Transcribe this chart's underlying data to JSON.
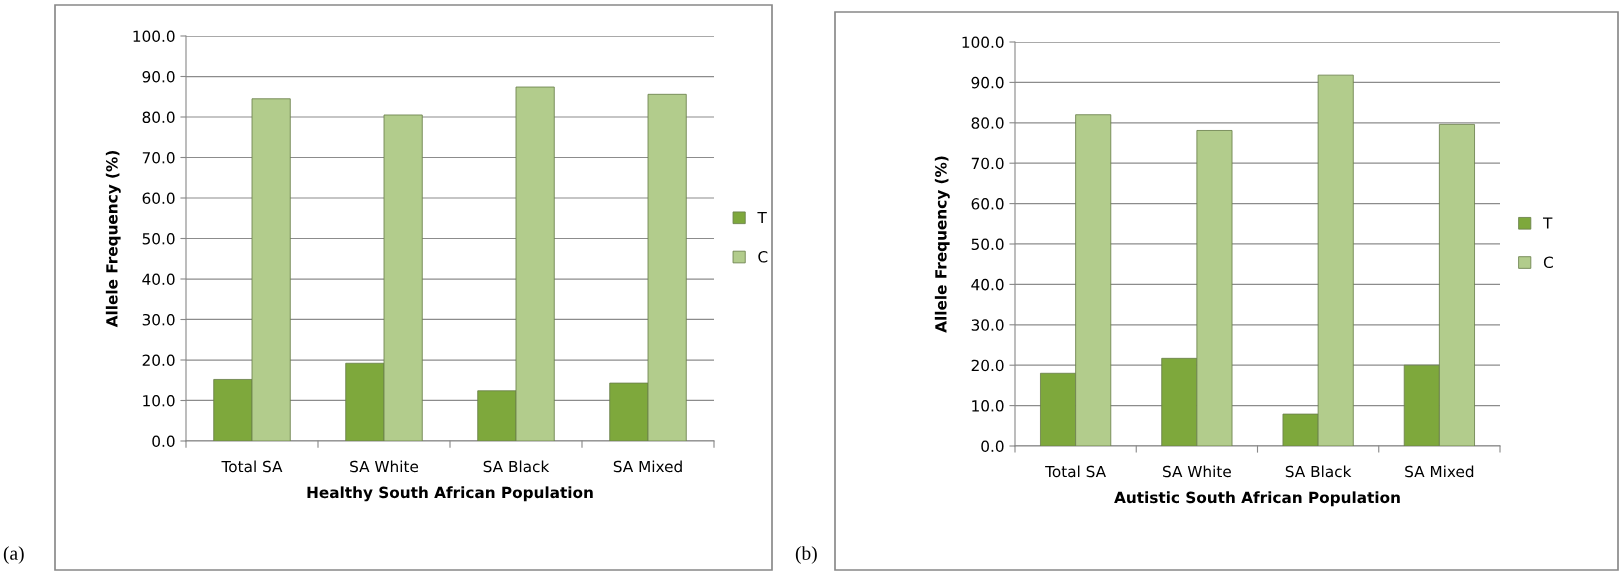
{
  "chart_data": [
    {
      "type": "bar",
      "xlabel": "Healthy South African Population",
      "ylabel": "Allele Frequency (%)",
      "categories": [
        "Total SA",
        "SA White",
        "SA Black",
        "SA Mixed"
      ],
      "series": [
        {
          "name": "T",
          "color": "#7ea83c",
          "values": [
            15.2,
            19.2,
            12.4,
            14.3
          ]
        },
        {
          "name": "C",
          "color": "#b2cc8c",
          "values": [
            84.5,
            80.5,
            87.4,
            85.6
          ]
        }
      ],
      "ylim": [
        0,
        100
      ],
      "yticks": [
        {
          "value": 0,
          "label": "0.0"
        },
        {
          "value": 10,
          "label": "10.0"
        },
        {
          "value": 20,
          "label": "20.0"
        },
        {
          "value": 30,
          "label": "30.0"
        },
        {
          "value": 40,
          "label": "40.0"
        },
        {
          "value": 50,
          "label": "50.0"
        },
        {
          "value": 60,
          "label": "60.0"
        },
        {
          "value": 70,
          "label": "70.0"
        },
        {
          "value": 80,
          "label": "80.0"
        },
        {
          "value": 90,
          "label": "90.0"
        },
        {
          "value": 100,
          "label": "100.0"
        }
      ],
      "grid": "y",
      "legend": "right",
      "annotations": [
        "(a)"
      ]
    },
    {
      "type": "bar",
      "xlabel": "Autistic South African Population",
      "ylabel": "Allele Frequency (%)",
      "categories": [
        "Total SA",
        "SA White",
        "SA Black",
        "SA Mixed"
      ],
      "series": [
        {
          "name": "T",
          "color": "#7ea83c",
          "values": [
            18.0,
            21.7,
            7.9,
            20.0
          ]
        },
        {
          "name": "C",
          "color": "#b2cc8c",
          "values": [
            82.0,
            78.1,
            91.8,
            79.6
          ]
        }
      ],
      "ylim": [
        0,
        100
      ],
      "yticks": [
        {
          "value": 0,
          "label": "0.0"
        },
        {
          "value": 10,
          "label": "10.0"
        },
        {
          "value": 20,
          "label": "20.0"
        },
        {
          "value": 30,
          "label": "30.0"
        },
        {
          "value": 40,
          "label": "40.0"
        },
        {
          "value": 50,
          "label": "50.0"
        },
        {
          "value": 60,
          "label": "60.0"
        },
        {
          "value": 70,
          "label": "70.0"
        },
        {
          "value": 80,
          "label": "80.0"
        },
        {
          "value": 90,
          "label": "90.0"
        },
        {
          "value": 100,
          "label": "100.0"
        }
      ],
      "grid": "y",
      "legend": "right",
      "annotations": [
        "(b)"
      ]
    }
  ]
}
